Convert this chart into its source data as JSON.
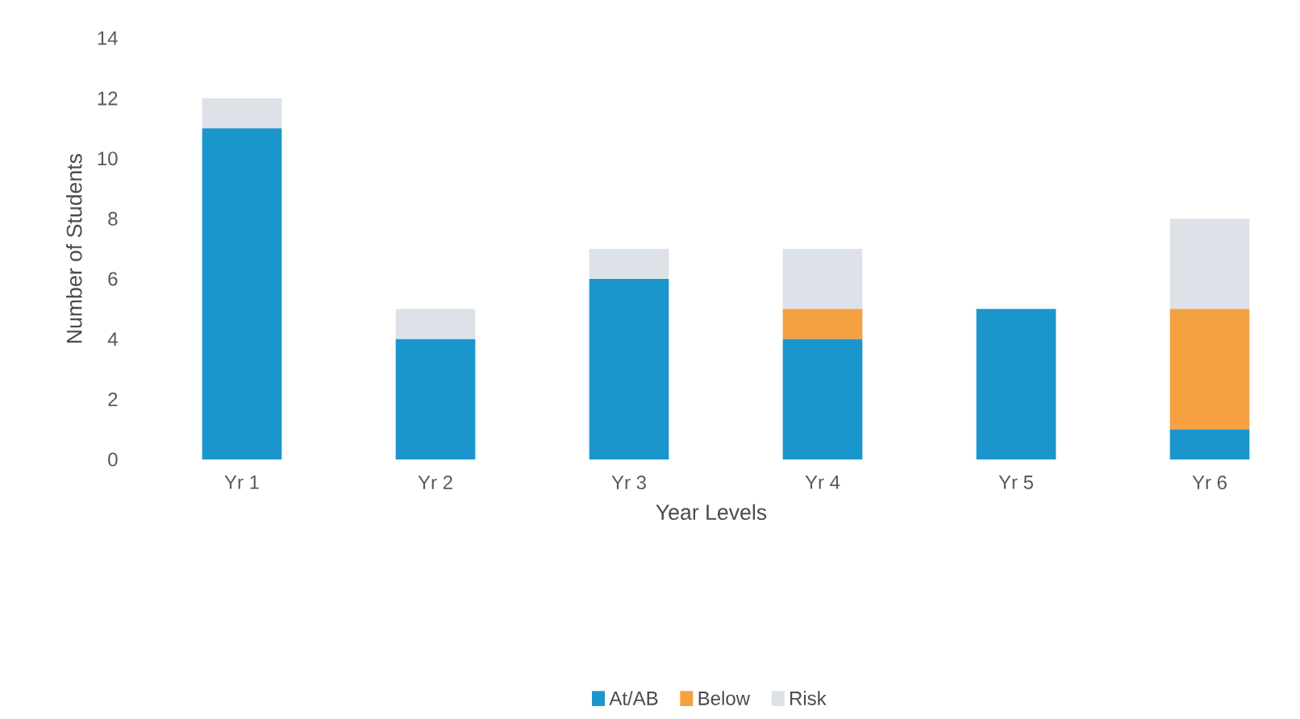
{
  "chart_data": {
    "type": "bar",
    "stacked": true,
    "xlabel": "Year Levels",
    "ylabel": "Number of Students",
    "categories": [
      "Yr 1",
      "Yr 2",
      "Yr 3",
      "Yr 4",
      "Yr 5",
      "Yr 6"
    ],
    "series": [
      {
        "name": "At/AB",
        "color": "#1a96cc",
        "values": [
          11,
          4,
          6,
          4,
          5,
          1
        ]
      },
      {
        "name": "Below",
        "color": "#f5a041",
        "values": [
          0,
          0,
          0,
          1,
          0,
          4
        ]
      },
      {
        "name": "Risk",
        "color": "#dce2e7",
        "values": [
          1,
          1,
          1,
          2,
          0,
          3
        ]
      }
    ],
    "ylim": [
      0,
      14
    ],
    "yticks": [
      0,
      2,
      4,
      6,
      8,
      10,
      12,
      14
    ],
    "grid": false,
    "legend": "bottom"
  }
}
